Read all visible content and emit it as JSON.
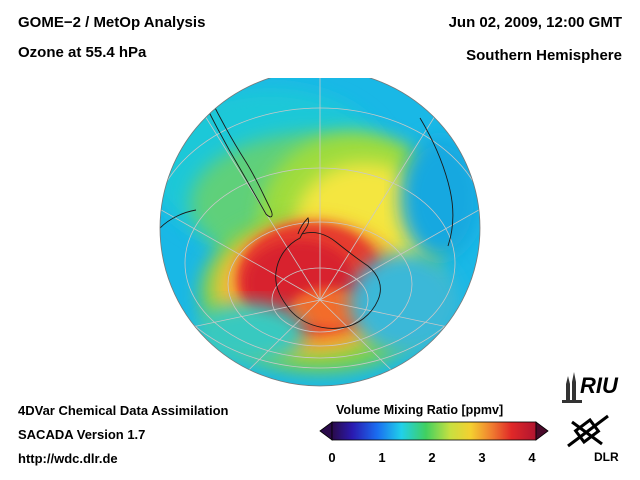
{
  "header": {
    "title": "GOME−2 / MetOp Analysis",
    "subtitle": "Ozone at 55.4 hPa",
    "date": "Jun 02, 2009, 12:00 GMT",
    "hemisphere": "Southern Hemisphere"
  },
  "footer": {
    "method": "4DVar Chemical Data Assimilation",
    "version": "SACADA Version 1.7",
    "url": "http://wdc.dlr.de"
  },
  "colorbar": {
    "title": "Volume Mixing Ratio [ppmv]",
    "ticks": [
      "0",
      "1",
      "2",
      "3",
      "4"
    ],
    "min": 0,
    "max": 4
  },
  "logos": {
    "riu": "RIU",
    "dlr": "DLR"
  }
}
